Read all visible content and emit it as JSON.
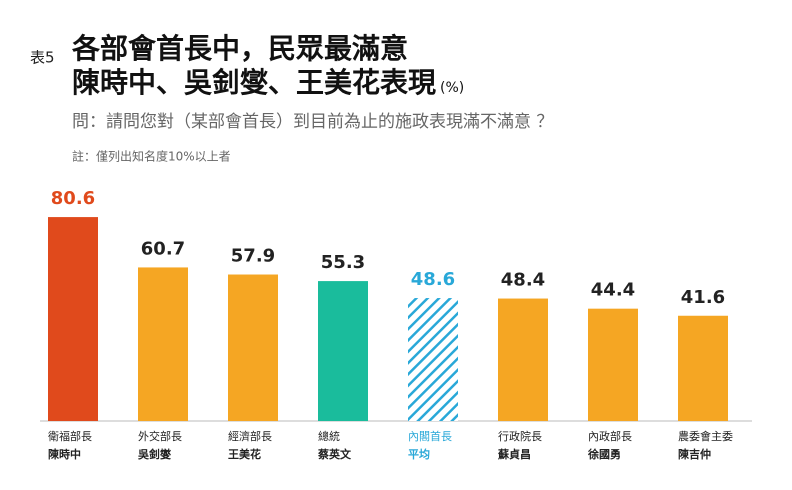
{
  "chart_data": {
    "type": "bar",
    "table_label": "表5",
    "title": [
      "各部會首長中，民眾最滿意",
      "陳時中、吳釗燮、王美花表現"
    ],
    "unit": "(%)",
    "subtitle": "問：請問您對（某部會首長）到目前為止的施政表現滿不滿意 ？",
    "note": "註：僅列出知名度10%以上者",
    "categories": [
      {
        "title": "衛福部長",
        "name": "陳時中"
      },
      {
        "title": "外交部長",
        "name": "吳釗燮"
      },
      {
        "title": "經濟部長",
        "name": "王美花"
      },
      {
        "title": "總統",
        "name": "蔡英文"
      },
      {
        "title": "內閣首長",
        "name": "平均"
      },
      {
        "title": "行政院長",
        "name": "蘇貞昌"
      },
      {
        "title": "內政部長",
        "name": "徐國勇"
      },
      {
        "title": "農委會主委",
        "name": "陳吉仲"
      }
    ],
    "values": [
      80.6,
      60.7,
      57.9,
      55.3,
      48.6,
      48.4,
      44.4,
      41.6
    ],
    "colors": [
      "#e04a1c",
      "#f5a623",
      "#f5a623",
      "#1abc9c",
      "#29a8d8",
      "#f5a623",
      "#f5a623",
      "#f5a623"
    ],
    "label_colors": [
      "#e04a1c",
      "#222222",
      "#222222",
      "#222222",
      "#29a8d8",
      "#222222",
      "#222222",
      "#222222"
    ],
    "hatched": [
      false,
      false,
      false,
      false,
      true,
      false,
      false,
      false
    ]
  }
}
